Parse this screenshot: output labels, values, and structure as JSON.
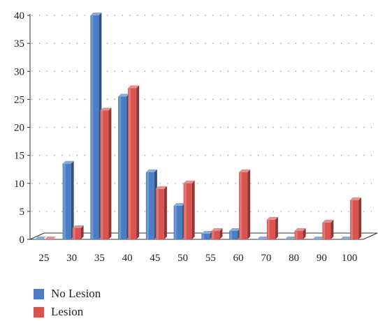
{
  "chart_data": {
    "type": "bar",
    "categories": [
      "25",
      "30",
      "35",
      "40",
      "45",
      "50",
      "55",
      "60",
      "70",
      "80",
      "90",
      "100"
    ],
    "series": [
      {
        "name": "No Lesion",
        "color": "#4a7dc4",
        "values": [
          0,
          13.5,
          40,
          25.5,
          12,
          6,
          1,
          1.5,
          0,
          0,
          0,
          0
        ]
      },
      {
        "name": "Lesion",
        "color": "#d9534f",
        "values": [
          0,
          2,
          23,
          27,
          9,
          10,
          1.5,
          12,
          3.5,
          1.5,
          3,
          7
        ]
      }
    ],
    "ylim": [
      0,
      40
    ],
    "yticks": [
      "0",
      "5",
      "10",
      "15",
      "20",
      "25",
      "30",
      "35",
      "40"
    ],
    "grid": "dotted-horizontal",
    "legend_position": "bottom-left",
    "style": "3d-bars"
  }
}
